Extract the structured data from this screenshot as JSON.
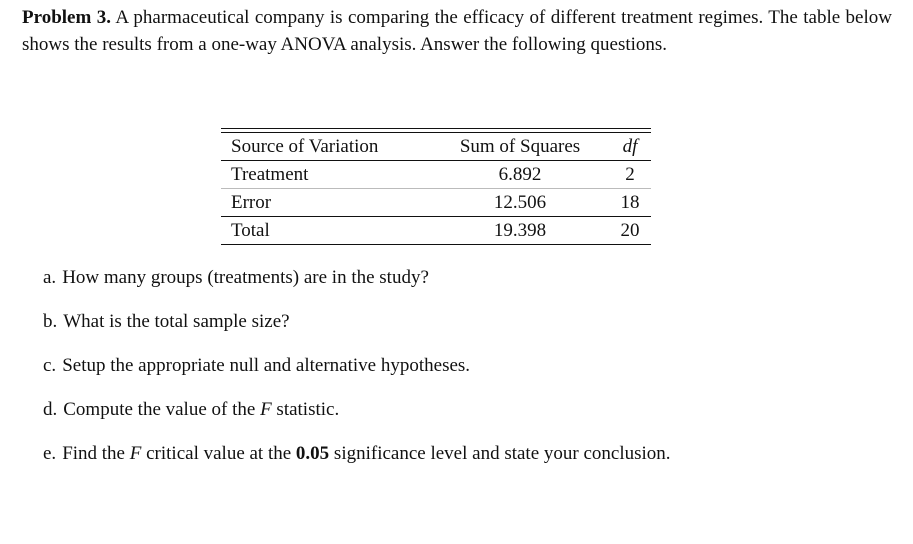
{
  "problem": {
    "label": "Problem 3.",
    "text": "A pharmaceutical company is comparing the efficacy of different treatment regimes. The table below shows the results from a one-way ANOVA analysis. Answer the following questions."
  },
  "table": {
    "headers": [
      "Source of Variation",
      "Sum of Squares",
      "df"
    ],
    "rows": [
      {
        "source": "Treatment",
        "ss": "6.892",
        "df": "2"
      },
      {
        "source": "Error",
        "ss": "12.506",
        "df": "18"
      },
      {
        "source": "Total",
        "ss": "19.398",
        "df": "20"
      }
    ]
  },
  "questions": {
    "a": {
      "label": "a.",
      "text": "How many groups (treatments) are in the study?"
    },
    "b": {
      "label": "b.",
      "text": "What is the total sample size?"
    },
    "c": {
      "label": "c.",
      "text": "Setup the appropriate null and alternative hypotheses."
    },
    "d": {
      "label": "d.",
      "pre": "Compute the value of the",
      "var": "F",
      "post": "statistic."
    },
    "e": {
      "label": "e.",
      "pre": "Find the",
      "var": "F",
      "mid": "critical value at the",
      "level": "0.05",
      "post": "significance level and state your conclusion."
    }
  }
}
